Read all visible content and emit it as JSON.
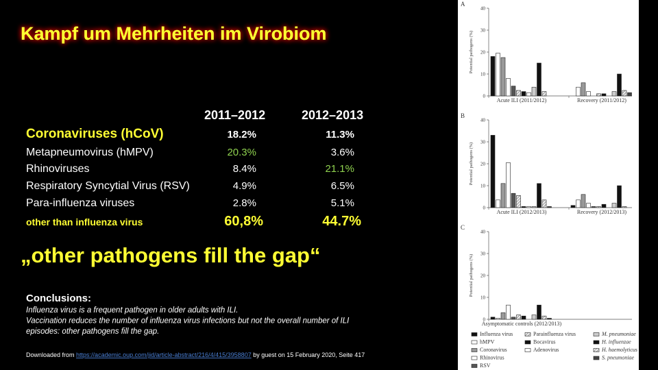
{
  "slide": {
    "title": "Kampf um Mehrheiten im Virobiom"
  },
  "table": {
    "headers": [
      "2011–2012",
      "2012–2013"
    ],
    "rows": [
      {
        "label": "Coronaviruses (hCoV)",
        "values": [
          "18.2%",
          "11.3%"
        ]
      },
      {
        "label": "Metapneumovirus (hMPV)",
        "values": [
          "20.3%",
          "3.6%"
        ]
      },
      {
        "label": "Rhinoviruses",
        "values": [
          "8.4%",
          "21.1%"
        ]
      },
      {
        "label": "Respiratory Syncytial Virus (RSV)",
        "values": [
          "4.9%",
          "6.5%"
        ]
      },
      {
        "label": "Para-influenza viruses",
        "values": [
          "2.8%",
          "5.1%"
        ]
      },
      {
        "label": "other than influenza virus",
        "values": [
          "60,8%",
          "44.7%"
        ]
      }
    ]
  },
  "quote": "„other pathogens fill the gap“",
  "conclusions": {
    "heading": "Conclusions:",
    "lines": [
      "Influenza virus is a frequent pathogen in older adults with ILI.",
      "Vaccination reduces the number of influenza virus infections but not the overall number of ILI",
      "episodes: other pathogens fill the gap."
    ]
  },
  "footer": {
    "prefix": "Downloaded from ",
    "link": "https://academic.oup.com/jid/article-abstract/216/4/415/3958807",
    "suffix": " by guest on 15 February 2020, Seite 417"
  },
  "figure": {
    "panels": [
      {
        "label": "A",
        "ylabel": "Potential pathogens (%)",
        "ylim": [
          0,
          40
        ],
        "yticks": [
          0,
          10,
          20,
          30,
          40
        ],
        "groups": [
          {
            "label": "Acute ILI (2011/2012)",
            "values": [
              18,
              19.5,
              17.5,
              8,
              4.5,
              2.5,
              2,
              1.5,
              4,
              15,
              2,
              0
            ]
          },
          {
            "label": "Recovery (2011/2012)",
            "values": [
              0,
              4,
              6,
              2,
              0,
              1,
              1,
              0,
              2,
              10,
              2.5,
              1.5
            ]
          }
        ]
      },
      {
        "label": "B",
        "ylabel": "Potential pathogens (%)",
        "ylim": [
          0,
          40
        ],
        "yticks": [
          0,
          10,
          20,
          30,
          40
        ],
        "groups": [
          {
            "label": "Acute ILI (2012/2013)",
            "values": [
              33,
              3.5,
              11,
              20.5,
              6.5,
              5.5,
              0.5,
              0.5,
              0.5,
              11,
              3.5,
              0.5
            ]
          },
          {
            "label": "Recovery (2012/2013)",
            "values": [
              1,
              3.5,
              6,
              2,
              0.5,
              0.5,
              1.5,
              0,
              2,
              10,
              0.5,
              0
            ]
          }
        ]
      },
      {
        "label": "C",
        "ylabel": "Potential pathogens (%)",
        "ylim": [
          0,
          40
        ],
        "yticks": [
          0,
          10,
          20,
          30,
          40
        ],
        "groups": [
          {
            "label": "Asymptomatic controls (2012/2013)",
            "values": [
              1,
              0.5,
              3,
              6.5,
              1,
              2,
              1.5,
              0,
              2,
              6.5,
              1.5,
              0.5
            ]
          }
        ]
      }
    ],
    "legend": [
      {
        "name": "Influenza virus",
        "color": "#111111"
      },
      {
        "name": "hMPV",
        "color": "#ffffff"
      },
      {
        "name": "Coronavirus",
        "color": "#999999"
      },
      {
        "name": "Rhinovirus",
        "color": "#ffffff"
      },
      {
        "name": "RSV",
        "color": "#555555"
      },
      {
        "name": "Parainfluenza virus",
        "color": "#bbbbbb",
        "hatch": true
      },
      {
        "name": "Bocavirus",
        "color": "#111111"
      },
      {
        "name": "Adenovirus",
        "color": "#ffffff"
      },
      {
        "name": "M. pneumoniae",
        "color": "#cccccc"
      },
      {
        "name": "H. influenzae",
        "color": "#111111"
      },
      {
        "name": "H. haemolyticus",
        "color": "#cccccc",
        "hatch": true
      },
      {
        "name": "S. pneumoniae",
        "color": "#444444"
      }
    ]
  }
}
